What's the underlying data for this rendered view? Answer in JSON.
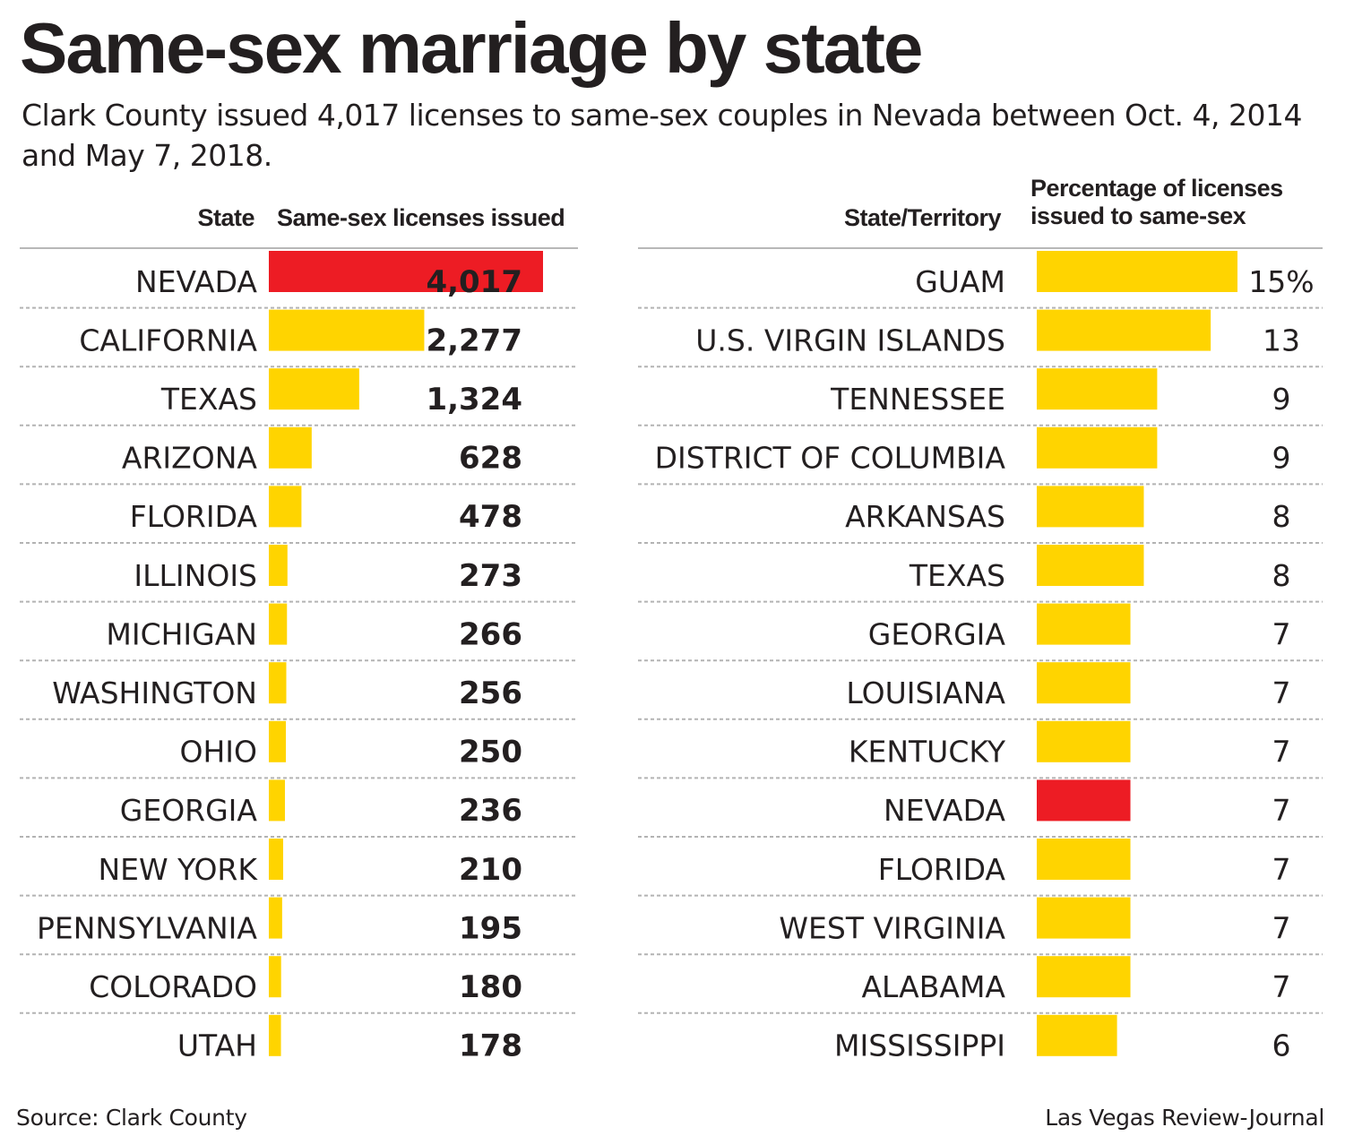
{
  "title": "Same-sex marriage by state",
  "subtitle": "Clark County issued 4,017 licenses to same-sex couples in Nevada between Oct. 4, 2014 and May 7, 2018.",
  "colors": {
    "highlight": "#ed1c24",
    "bar": "#ffd400",
    "text": "#231f20",
    "divider": "#b3b3b3"
  },
  "chart_data": [
    {
      "type": "bar",
      "orientation": "horizontal",
      "category_header": "State",
      "value_header": "Same-sex licenses issued",
      "categories": [
        "NEVADA",
        "CALIFORNIA",
        "TEXAS",
        "ARIZONA",
        "FLORIDA",
        "ILLINOIS",
        "MICHIGAN",
        "WASHINGTON",
        "OHIO",
        "GEORGIA",
        "NEW YORK",
        "PENNSYLVANIA",
        "COLORADO",
        "UTAH"
      ],
      "values": [
        4017,
        2277,
        1324,
        628,
        478,
        273,
        266,
        256,
        250,
        236,
        210,
        195,
        180,
        178
      ],
      "labels": [
        "4,017",
        "2,277",
        "1,324",
        "628",
        "478",
        "273",
        "266",
        "256",
        "250",
        "236",
        "210",
        "195",
        "180",
        "178"
      ],
      "highlight": "NEVADA",
      "xlim": [
        0,
        4017
      ]
    },
    {
      "type": "bar",
      "orientation": "horizontal",
      "category_header": "State/Territory",
      "value_header": [
        "Percentage of licenses",
        "issued to same-sex"
      ],
      "categories": [
        "GUAM",
        "U.S. VIRGIN ISLANDS",
        "TENNESSEE",
        "DISTRICT OF COLUMBIA",
        "ARKANSAS",
        "TEXAS",
        "GEORGIA",
        "LOUISIANA",
        "KENTUCKY",
        "NEVADA",
        "FLORIDA",
        "WEST VIRGINIA",
        "ALABAMA",
        "MISSISSIPPI"
      ],
      "values": [
        15,
        13,
        9,
        9,
        8,
        8,
        7,
        7,
        7,
        7,
        7,
        7,
        7,
        6
      ],
      "labels": [
        "15%",
        "13",
        "9",
        "9",
        "8",
        "8",
        "7",
        "7",
        "7",
        "7",
        "7",
        "7",
        "7",
        "6"
      ],
      "unit": "%",
      "highlight": "NEVADA",
      "xlim": [
        0,
        15
      ]
    }
  ],
  "footer": {
    "source": "Source: Clark County",
    "credit": "Las Vegas Review-Journal"
  }
}
